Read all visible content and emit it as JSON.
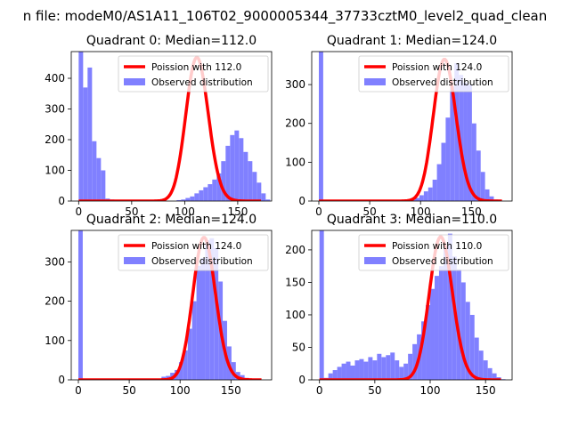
{
  "suptitle": "n file: modeM0/AS1A11_106T02_9000005344_37733cztM0_level2_quad_clean",
  "colors": {
    "observed": "#8080ff",
    "poisson": "#ff0000",
    "axis": "#000000"
  },
  "chart_data": [
    {
      "type": "bar",
      "title": "Quadrant 0: Median=112.0",
      "xlim": [
        -7,
        182
      ],
      "ylim": [
        0,
        487
      ],
      "xticks": [
        0,
        50,
        100,
        150
      ],
      "yticks": [
        0,
        100,
        200,
        300,
        400
      ],
      "legend": {
        "placement": "top-right",
        "entries": [
          "Poission with 112.0",
          "Observed distribution"
        ]
      },
      "bins": {
        "start": 0,
        "width": 4.2,
        "counts": [
          487,
          370,
          435,
          195,
          140,
          100,
          8,
          5,
          0,
          0,
          0,
          0,
          0,
          0,
          0,
          0,
          0,
          0,
          0,
          0,
          0,
          0,
          3,
          5,
          10,
          15,
          25,
          35,
          45,
          55,
          70,
          90,
          130,
          180,
          215,
          230,
          205,
          160,
          130,
          95,
          60,
          25,
          5
        ]
      },
      "poisson": {
        "lambda": 112.0,
        "peak": 468
      }
    },
    {
      "type": "bar",
      "title": "Quadrant 1: Median=124.0",
      "xlim": [
        -7,
        190
      ],
      "ylim": [
        0,
        385
      ],
      "xticks": [
        0,
        50,
        100,
        150
      ],
      "yticks": [
        0,
        100,
        200,
        300
      ],
      "legend": {
        "placement": "top-right",
        "entries": [
          "Poission with 124.0",
          "Observed distribution"
        ]
      },
      "bins": {
        "start": 0,
        "width": 4.3,
        "counts": [
          385,
          0,
          0,
          0,
          0,
          0,
          0,
          0,
          0,
          0,
          0,
          0,
          0,
          0,
          0,
          0,
          0,
          0,
          0,
          0,
          0,
          3,
          8,
          15,
          25,
          35,
          55,
          95,
          150,
          215,
          295,
          355,
          325,
          305,
          300,
          200,
          130,
          75,
          30,
          12,
          4
        ]
      },
      "poisson": {
        "lambda": 124.0,
        "peak": 365
      }
    },
    {
      "type": "bar",
      "title": "Quadrant 2: Median=124.0",
      "xlim": [
        -7,
        190
      ],
      "ylim": [
        0,
        380
      ],
      "xticks": [
        0,
        50,
        100,
        150
      ],
      "yticks": [
        0,
        100,
        200,
        300
      ],
      "legend": {
        "placement": "top-right",
        "entries": [
          "Poission with 124.0",
          "Observed distribution"
        ]
      },
      "bins": {
        "start": 0,
        "width": 4.3,
        "counts": [
          380,
          0,
          0,
          0,
          0,
          0,
          0,
          0,
          0,
          0,
          0,
          0,
          0,
          0,
          0,
          0,
          0,
          1,
          3,
          8,
          10,
          18,
          25,
          45,
          75,
          130,
          200,
          290,
          310,
          355,
          360,
          335,
          250,
          150,
          85,
          45,
          20,
          12,
          5,
          2,
          1
        ]
      },
      "poisson": {
        "lambda": 124.0,
        "peak": 362
      }
    },
    {
      "type": "bar",
      "title": "Quadrant 3: Median=110.0",
      "xlim": [
        -7,
        174
      ],
      "ylim": [
        0,
        230
      ],
      "xticks": [
        0,
        50,
        100,
        150
      ],
      "yticks": [
        0,
        50,
        100,
        150,
        200
      ],
      "legend": {
        "placement": "top-right",
        "entries": [
          "Poission with 110.0",
          "Observed distribution"
        ]
      },
      "bins": {
        "start": 0,
        "width": 4.0,
        "counts": [
          230,
          3,
          10,
          15,
          20,
          25,
          28,
          22,
          30,
          32,
          28,
          35,
          30,
          40,
          35,
          38,
          42,
          30,
          20,
          25,
          40,
          55,
          70,
          90,
          115,
          140,
          160,
          175,
          205,
          225,
          190,
          170,
          150,
          120,
          100,
          65,
          45,
          30,
          18,
          10,
          4,
          1
        ]
      },
      "poisson": {
        "lambda": 110.0,
        "peak": 220
      }
    }
  ]
}
